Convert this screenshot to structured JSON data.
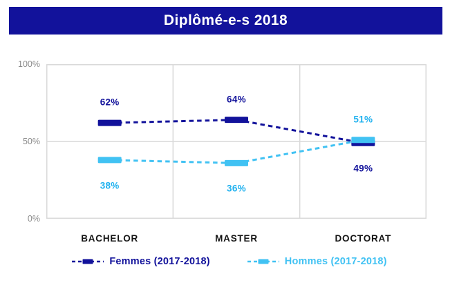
{
  "title": "Diplômé-e-s 2018",
  "title_bar": {
    "background": "#12129B",
    "text_color": "#FFFFFF"
  },
  "chart_data": {
    "type": "line",
    "subtype": "dashed lines with thick horizontal dash markers",
    "title": "Diplômé-e-s 2018",
    "categories": [
      "BACHELOR",
      "MASTER",
      "DOCTORAT"
    ],
    "series": [
      {
        "name": "Femmes (2017-2018)",
        "color": "#12129B",
        "label_color": "#12129B",
        "values": [
          62,
          64,
          49
        ],
        "label_positions": [
          "above",
          "above",
          "below"
        ]
      },
      {
        "name": "Hommes (2017-2018)",
        "color": "#41C2F3",
        "label_color": "#1FB1EF",
        "values": [
          38,
          36,
          51
        ],
        "label_positions": [
          "below",
          "below",
          "above"
        ]
      }
    ],
    "ylim": [
      0,
      100
    ],
    "yticks": [
      {
        "label": "100%",
        "value": 100
      },
      {
        "label": "50%",
        "value": 50
      },
      {
        "label": "0%",
        "value": 0
      }
    ],
    "grid": {
      "border": true,
      "category_separators": true,
      "horizontal_lines_at": [
        50
      ],
      "color": "#D9D9D9"
    },
    "legend_position": "bottom-center",
    "value_suffix": "%"
  }
}
